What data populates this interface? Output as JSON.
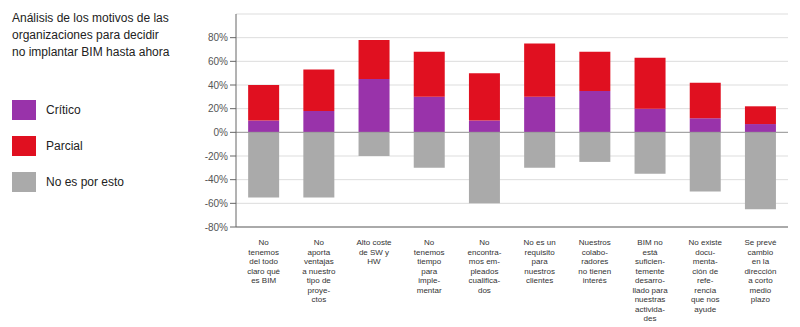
{
  "chart_data": {
    "type": "bar",
    "title": "Análisis de los motivos de las\norganizaciones para decidir\nno implantar BIM hasta ahora",
    "categories": [
      "No\ntenemos\ndel todo\nclaro qué\nes BIM",
      "No\naporta\nventajas\na nuestro\ntipo de\nproye-\nctos",
      "Alto coste\nde SW y\nHW",
      "No\ntenemos\ntiempo\npara\nimple-\nmentar",
      "No\nencontra-\nmos em-\npleados\ncualifica-\ndos",
      "No es un\nrequisito\npara\nnuestros\nclientes",
      "Nuestros\ncolabo-\nradores\nno tienen\ninterés",
      "BIM no\nestá\nsuficien-\ntemente\ndesarro-\nllado para\nnuestras\nactivida-\ndes",
      "No existe\ndocu-\nmenta-\nción de\nrefe-\nrencia\nque nos\nayude",
      "Se prevé\ncambio\nen la\ndirección\na corto\nmedio\nplazo"
    ],
    "series": [
      {
        "name": "Crítico",
        "color": "#9933aa",
        "values": [
          10,
          18,
          45,
          30,
          10,
          30,
          35,
          20,
          12,
          7
        ]
      },
      {
        "name": "Parcial",
        "color": "#e01020",
        "values": [
          30,
          35,
          33,
          38,
          40,
          45,
          33,
          43,
          30,
          15
        ]
      },
      {
        "name": "No es por esto",
        "color": "#aaaaaa",
        "values": [
          -55,
          -55,
          -20,
          -30,
          -60,
          -30,
          -25,
          -35,
          -50,
          -65
        ]
      }
    ],
    "stacked": true,
    "ylim": [
      -80,
      100
    ],
    "yticks": [
      {
        "value": -80,
        "label": "-80%"
      },
      {
        "value": -60,
        "label": "-60%"
      },
      {
        "value": -40,
        "label": "-40%"
      },
      {
        "value": -20,
        "label": "-20%"
      },
      {
        "value": 0,
        "label": "0%"
      },
      {
        "value": 20,
        "label": "20%"
      },
      {
        "value": 40,
        "label": "40%"
      },
      {
        "value": 60,
        "label": "60%"
      },
      {
        "value": 80,
        "label": "80%"
      }
    ],
    "grid": true,
    "legend": "left"
  }
}
